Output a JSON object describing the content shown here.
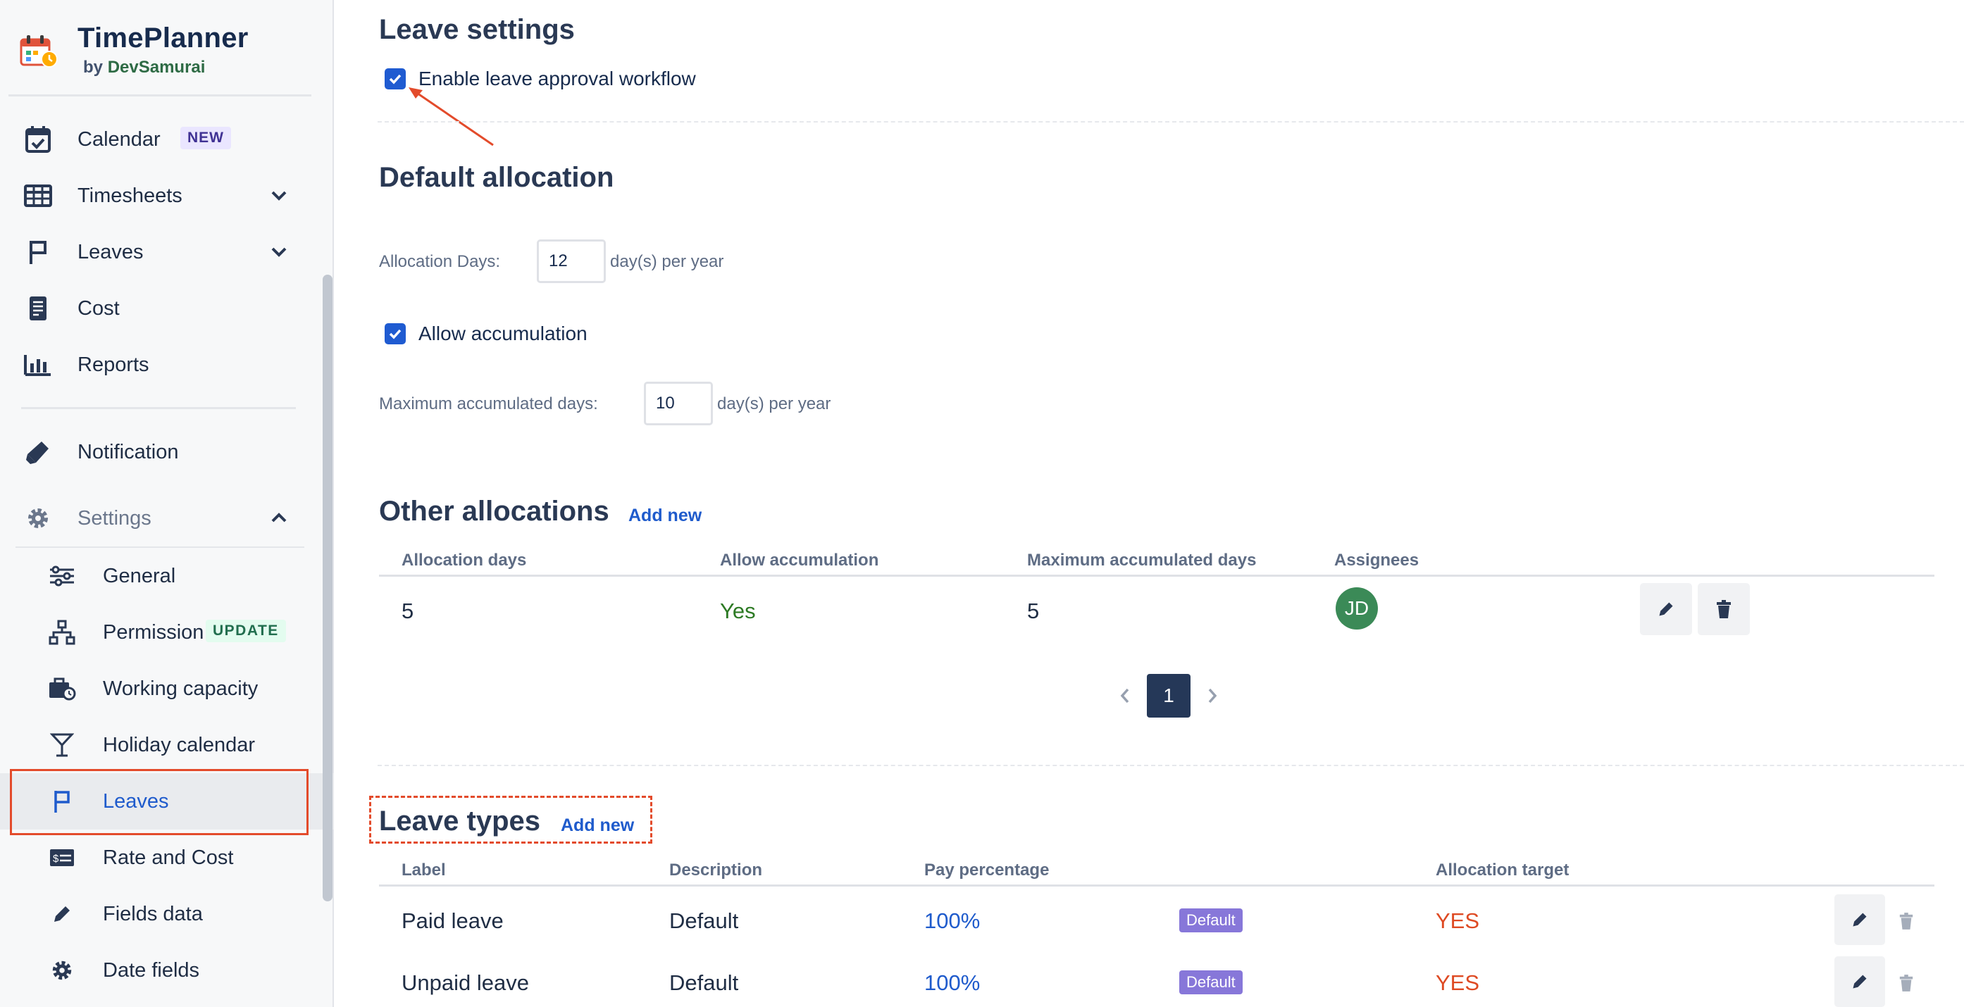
{
  "brand": {
    "title": "TimePlanner",
    "by": "by",
    "company": "DevSamurai"
  },
  "sidebar": {
    "nav": [
      {
        "label": "Calendar",
        "badge": "NEW",
        "icon": "calendar-check-icon"
      },
      {
        "label": "Timesheets",
        "icon": "grid-table-icon",
        "chevron": "chevron-down-icon"
      },
      {
        "label": "Leaves",
        "icon": "flag-icon",
        "chevron": "chevron-down-icon"
      },
      {
        "label": "Cost",
        "icon": "receipt-icon"
      },
      {
        "label": "Reports",
        "icon": "bar-chart-icon"
      },
      {
        "label": "Notification",
        "icon": "megaphone-icon"
      },
      {
        "label": "Settings",
        "icon": "gear-icon",
        "chevron": "chevron-up-icon"
      }
    ],
    "settings_items": [
      {
        "label": "General",
        "icon": "sliders-icon"
      },
      {
        "label": "Permission",
        "badge": "UPDATE",
        "icon": "hierarchy-icon"
      },
      {
        "label": "Working capacity",
        "icon": "briefcase-clock-icon"
      },
      {
        "label": "Holiday calendar",
        "icon": "cocktail-icon"
      },
      {
        "label": "Leaves",
        "icon": "flag-icon",
        "active": true
      },
      {
        "label": "Rate and Cost",
        "icon": "money-card-icon"
      },
      {
        "label": "Fields data",
        "icon": "pencil-icon"
      },
      {
        "label": "Date fields",
        "icon": "gear-icon"
      }
    ]
  },
  "main": {
    "leave_settings": {
      "heading": "Leave settings",
      "approval_label": "Enable leave approval workflow",
      "approval_checked": true
    },
    "default_allocation": {
      "heading": "Default allocation",
      "allocation_days_label": "Allocation Days:",
      "allocation_days_value": "12",
      "unit": "day(s) per year",
      "accumulation_label": "Allow accumulation",
      "accumulation_checked": true,
      "max_days_label": "Maximum accumulated days:",
      "max_days_value": "10"
    },
    "other_allocations": {
      "heading": "Other allocations",
      "add_new": "Add new",
      "columns": [
        "Allocation days",
        "Allow accumulation",
        "Maximum accumulated days",
        "Assignees"
      ],
      "rows": [
        {
          "allocation_days": "5",
          "allow_accumulation": "Yes",
          "max_days": "5",
          "assignee_initials": "JD"
        }
      ],
      "pagination": {
        "current_page": "1"
      }
    },
    "leave_types": {
      "heading": "Leave types",
      "add_new": "Add new",
      "columns": [
        "Label",
        "Description",
        "Pay percentage",
        "Allocation target"
      ],
      "rows": [
        {
          "label": "Paid leave",
          "description": "Default",
          "pay": "100%",
          "tag": "Default",
          "target": "YES"
        },
        {
          "label": "Unpaid leave",
          "description": "Default",
          "pay": "100%",
          "tag": "Default",
          "target": "YES"
        }
      ]
    }
  },
  "colors": {
    "accent": "#1f5bcc",
    "annotation": "#e34b2b",
    "yes_green": "#2d7a24",
    "target_red": "#de4a23",
    "lozenge": "#8777d9"
  }
}
